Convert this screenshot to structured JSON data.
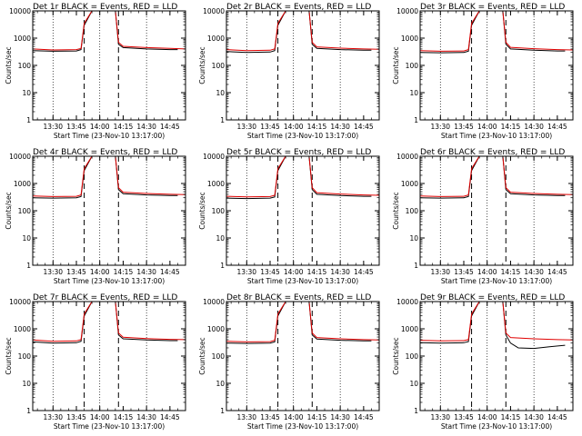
{
  "colors": {
    "events": "#000000",
    "lld": "#e00000",
    "axes": "#000000"
  },
  "chart_data": [
    {
      "type": "line",
      "title": "Det 1r BLACK = Events, RED = LLD",
      "xlabel": "Start Time (23-Nov-10 13:17:00)",
      "ylabel": "Counts/sec",
      "yscale": "log",
      "ylim": [
        1,
        10000
      ],
      "xlim": [
        "13:17",
        "14:55"
      ],
      "xticks": [
        "13:30",
        "13:45",
        "14:00",
        "14:15",
        "14:30",
        "14:45"
      ],
      "yticks": [
        "1",
        "10",
        "100",
        "1000",
        "10000"
      ],
      "vlines": [
        "13:50",
        "14:12"
      ],
      "dotted_lines": [
        "13:30",
        "14:00",
        "14:30"
      ],
      "series": [
        {
          "name": "Events",
          "x": [
            "13:17",
            "13:30",
            "13:45",
            "13:48",
            "13:50",
            "13:55",
            "14:10",
            "14:12",
            "14:15",
            "14:30",
            "14:45",
            "14:50"
          ],
          "y": [
            350,
            330,
            340,
            380,
            3000,
            10000,
            10000,
            600,
            450,
            400,
            380,
            380
          ]
        },
        {
          "name": "LLD",
          "x": [
            "13:17",
            "13:30",
            "13:45",
            "13:48",
            "13:50",
            "13:55",
            "14:10",
            "14:12",
            "14:15",
            "14:30",
            "14:45",
            "14:55"
          ],
          "y": [
            400,
            370,
            380,
            420,
            3500,
            10000,
            10000,
            700,
            500,
            450,
            420,
            400
          ]
        }
      ]
    },
    {
      "type": "line",
      "title": "Det 2r BLACK = Events, RED = LLD",
      "xlabel": "Start Time (23-Nov-10 13:17:00)",
      "ylabel": "Counts/sec",
      "yscale": "log",
      "ylim": [
        1,
        10000
      ],
      "xlim": [
        "13:17",
        "14:55"
      ],
      "xticks": [
        "13:30",
        "13:45",
        "14:00",
        "14:15",
        "14:30",
        "14:45"
      ],
      "yticks": [
        "1",
        "10",
        "100",
        "1000",
        "10000"
      ],
      "vlines": [
        "13:50",
        "14:12"
      ],
      "dotted_lines": [
        "13:30",
        "14:00",
        "14:30"
      ],
      "series": [
        {
          "name": "Events",
          "x": [
            "13:17",
            "13:30",
            "13:45",
            "13:48",
            "13:50",
            "13:55",
            "14:10",
            "14:12",
            "14:15",
            "14:30",
            "14:45",
            "14:50"
          ],
          "y": [
            320,
            300,
            310,
            350,
            3000,
            10000,
            10000,
            600,
            420,
            380,
            360,
            360
          ]
        },
        {
          "name": "LLD",
          "x": [
            "13:17",
            "13:30",
            "13:45",
            "13:48",
            "13:50",
            "13:55",
            "14:10",
            "14:12",
            "14:15",
            "14:30",
            "14:45",
            "14:55"
          ],
          "y": [
            380,
            350,
            360,
            400,
            3500,
            10000,
            10000,
            700,
            480,
            430,
            400,
            390
          ]
        }
      ]
    },
    {
      "type": "line",
      "title": "Det 3r BLACK = Events, RED = LLD",
      "xlabel": "Start Time (23-Nov-10 13:17:00)",
      "ylabel": "Counts/sec",
      "yscale": "log",
      "ylim": [
        1,
        10000
      ],
      "xlim": [
        "13:17",
        "14:55"
      ],
      "xticks": [
        "13:30",
        "13:45",
        "14:00",
        "14:15",
        "14:30",
        "14:45"
      ],
      "yticks": [
        "1",
        "10",
        "100",
        "1000",
        "10000"
      ],
      "vlines": [
        "13:50",
        "14:12"
      ],
      "dotted_lines": [
        "13:30",
        "14:00",
        "14:30"
      ],
      "series": [
        {
          "name": "Events",
          "x": [
            "13:17",
            "13:30",
            "13:45",
            "13:48",
            "13:50",
            "13:55",
            "14:10",
            "14:12",
            "14:15",
            "14:30",
            "14:45",
            "14:50"
          ],
          "y": [
            300,
            290,
            300,
            330,
            3000,
            10000,
            10000,
            600,
            400,
            360,
            340,
            340
          ]
        },
        {
          "name": "LLD",
          "x": [
            "13:17",
            "13:30",
            "13:45",
            "13:48",
            "13:50",
            "13:55",
            "14:10",
            "14:12",
            "14:15",
            "14:30",
            "14:45",
            "14:55"
          ],
          "y": [
            350,
            330,
            340,
            380,
            3500,
            10000,
            10000,
            700,
            460,
            410,
            380,
            370
          ]
        }
      ]
    },
    {
      "type": "line",
      "title": "Det 4r BLACK = Events, RED = LLD",
      "xlabel": "Start Time (23-Nov-10 13:17:00)",
      "ylabel": "Counts/sec",
      "yscale": "log",
      "ylim": [
        1,
        10000
      ],
      "xlim": [
        "13:17",
        "14:55"
      ],
      "xticks": [
        "13:30",
        "13:45",
        "14:00",
        "14:15",
        "14:30",
        "14:45"
      ],
      "yticks": [
        "1",
        "10",
        "100",
        "1000",
        "10000"
      ],
      "vlines": [
        "13:50",
        "14:12"
      ],
      "dotted_lines": [
        "13:30",
        "14:00",
        "14:30"
      ],
      "series": [
        {
          "name": "Events",
          "x": [
            "13:17",
            "13:30",
            "13:45",
            "13:48",
            "13:50",
            "13:55",
            "14:10",
            "14:12",
            "14:15",
            "14:30",
            "14:45",
            "14:50"
          ],
          "y": [
            300,
            290,
            300,
            330,
            3000,
            10000,
            10000,
            600,
            420,
            380,
            360,
            360
          ]
        },
        {
          "name": "LLD",
          "x": [
            "13:17",
            "13:30",
            "13:45",
            "13:48",
            "13:50",
            "13:55",
            "14:10",
            "14:12",
            "14:15",
            "14:30",
            "14:45",
            "14:55"
          ],
          "y": [
            350,
            330,
            340,
            380,
            3500,
            10000,
            10000,
            700,
            480,
            430,
            400,
            390
          ]
        }
      ]
    },
    {
      "type": "line",
      "title": "Det 5r BLACK = Events, RED = LLD",
      "xlabel": "Start Time (23-Nov-10 13:17:00)",
      "ylabel": "Counts/sec",
      "yscale": "log",
      "ylim": [
        1,
        10000
      ],
      "xlim": [
        "13:17",
        "14:55"
      ],
      "xticks": [
        "13:30",
        "13:45",
        "14:00",
        "14:15",
        "14:30",
        "14:45"
      ],
      "yticks": [
        "1",
        "10",
        "100",
        "1000",
        "10000"
      ],
      "vlines": [
        "13:50",
        "14:12"
      ],
      "dotted_lines": [
        "13:30",
        "14:00",
        "14:30"
      ],
      "series": [
        {
          "name": "Events",
          "x": [
            "13:17",
            "13:30",
            "13:45",
            "13:48",
            "13:50",
            "13:55",
            "14:10",
            "14:12",
            "14:15",
            "14:30",
            "14:45",
            "14:50"
          ],
          "y": [
            290,
            280,
            290,
            320,
            3000,
            10000,
            10000,
            600,
            400,
            360,
            340,
            340
          ]
        },
        {
          "name": "LLD",
          "x": [
            "13:17",
            "13:30",
            "13:45",
            "13:48",
            "13:50",
            "13:55",
            "14:10",
            "14:12",
            "14:15",
            "14:30",
            "14:45",
            "14:55"
          ],
          "y": [
            340,
            320,
            330,
            370,
            3500,
            10000,
            10000,
            700,
            460,
            410,
            380,
            370
          ]
        }
      ]
    },
    {
      "type": "line",
      "title": "Det 6r BLACK = Events, RED = LLD",
      "xlabel": "Start Time (23-Nov-10 13:17:00)",
      "ylabel": "Counts/sec",
      "yscale": "log",
      "ylim": [
        1,
        10000
      ],
      "xlim": [
        "13:17",
        "14:55"
      ],
      "xticks": [
        "13:30",
        "13:45",
        "14:00",
        "14:15",
        "14:30",
        "14:45"
      ],
      "yticks": [
        "1",
        "10",
        "100",
        "1000",
        "10000"
      ],
      "vlines": [
        "13:50",
        "14:12"
      ],
      "dotted_lines": [
        "13:30",
        "14:00",
        "14:30"
      ],
      "series": [
        {
          "name": "Events",
          "x": [
            "13:17",
            "13:30",
            "13:45",
            "13:48",
            "13:50",
            "13:55",
            "14:10",
            "14:12",
            "14:15",
            "14:30",
            "14:45",
            "14:50"
          ],
          "y": [
            300,
            290,
            300,
            330,
            3000,
            10000,
            10000,
            600,
            420,
            380,
            360,
            360
          ]
        },
        {
          "name": "LLD",
          "x": [
            "13:17",
            "13:30",
            "13:45",
            "13:48",
            "13:50",
            "13:55",
            "14:10",
            "14:12",
            "14:15",
            "14:30",
            "14:45",
            "14:55"
          ],
          "y": [
            350,
            330,
            340,
            380,
            3500,
            10000,
            10000,
            700,
            480,
            430,
            400,
            390
          ]
        }
      ]
    },
    {
      "type": "line",
      "title": "Det 7r BLACK = Events, RED = LLD",
      "xlabel": "Start Time (23-Nov-10 13:17:00)",
      "ylabel": "Counts/sec",
      "yscale": "log",
      "ylim": [
        1,
        10000
      ],
      "xlim": [
        "13:17",
        "14:55"
      ],
      "xticks": [
        "13:30",
        "13:45",
        "14:00",
        "14:15",
        "14:30",
        "14:45"
      ],
      "yticks": [
        "1",
        "10",
        "100",
        "1000",
        "10000"
      ],
      "vlines": [
        "13:50",
        "14:12"
      ],
      "dotted_lines": [
        "13:30",
        "14:00",
        "14:30"
      ],
      "series": [
        {
          "name": "Events",
          "x": [
            "13:17",
            "13:30",
            "13:45",
            "13:48",
            "13:50",
            "13:55",
            "14:10",
            "14:12",
            "14:15",
            "14:30",
            "14:45",
            "14:50"
          ],
          "y": [
            330,
            300,
            310,
            350,
            3000,
            10000,
            10000,
            600,
            430,
            390,
            370,
            370
          ]
        },
        {
          "name": "LLD",
          "x": [
            "13:17",
            "13:30",
            "13:45",
            "13:48",
            "13:50",
            "13:55",
            "14:10",
            "14:12",
            "14:15",
            "14:30",
            "14:45",
            "14:55"
          ],
          "y": [
            390,
            350,
            360,
            400,
            3500,
            10000,
            10000,
            700,
            490,
            440,
            410,
            400
          ]
        }
      ]
    },
    {
      "type": "line",
      "title": "Det 8r BLACK = Events, RED = LLD",
      "xlabel": "Start Time (23-Nov-10 13:17:00)",
      "ylabel": "Counts/sec",
      "yscale": "log",
      "ylim": [
        1,
        10000
      ],
      "xlim": [
        "13:17",
        "14:55"
      ],
      "xticks": [
        "13:30",
        "13:45",
        "14:00",
        "14:15",
        "14:30",
        "14:45"
      ],
      "yticks": [
        "1",
        "10",
        "100",
        "1000",
        "10000"
      ],
      "vlines": [
        "13:50",
        "14:12"
      ],
      "dotted_lines": [
        "13:30",
        "14:00",
        "14:30"
      ],
      "series": [
        {
          "name": "Events",
          "x": [
            "13:17",
            "13:30",
            "13:45",
            "13:48",
            "13:50",
            "13:55",
            "14:10",
            "14:12",
            "14:15",
            "14:30",
            "14:45",
            "14:50"
          ],
          "y": [
            300,
            290,
            300,
            330,
            3000,
            10000,
            10000,
            600,
            420,
            380,
            360,
            360
          ]
        },
        {
          "name": "LLD",
          "x": [
            "13:17",
            "13:30",
            "13:45",
            "13:48",
            "13:50",
            "13:55",
            "14:10",
            "14:12",
            "14:15",
            "14:30",
            "14:45",
            "14:55"
          ],
          "y": [
            350,
            330,
            340,
            380,
            3500,
            10000,
            10000,
            700,
            480,
            430,
            400,
            390
          ]
        }
      ]
    },
    {
      "type": "line",
      "title": "Det 9r BLACK = Events, RED = LLD",
      "xlabel": "Start Time (23-Nov-10 13:17:00)",
      "ylabel": "Counts/sec",
      "yscale": "log",
      "ylim": [
        1,
        10000
      ],
      "xlim": [
        "13:17",
        "14:55"
      ],
      "xticks": [
        "13:30",
        "13:45",
        "14:00",
        "14:15",
        "14:30",
        "14:45"
      ],
      "yticks": [
        "1",
        "10",
        "100",
        "1000",
        "10000"
      ],
      "vlines": [
        "13:50",
        "14:12"
      ],
      "dotted_lines": [
        "13:30",
        "14:00",
        "14:30"
      ],
      "series": [
        {
          "name": "Events",
          "x": [
            "13:17",
            "13:30",
            "13:45",
            "13:48",
            "13:50",
            "13:55",
            "14:10",
            "14:12",
            "14:15",
            "14:20",
            "14:30",
            "14:40",
            "14:50"
          ],
          "y": [
            310,
            300,
            310,
            340,
            3000,
            10000,
            10000,
            600,
            300,
            200,
            190,
            220,
            250
          ]
        },
        {
          "name": "LLD",
          "x": [
            "13:17",
            "13:30",
            "13:45",
            "13:48",
            "13:50",
            "13:55",
            "14:10",
            "14:12",
            "14:15",
            "14:30",
            "14:45",
            "14:55"
          ],
          "y": [
            380,
            360,
            370,
            400,
            3500,
            10000,
            10000,
            700,
            480,
            430,
            400,
            390
          ]
        }
      ]
    }
  ]
}
